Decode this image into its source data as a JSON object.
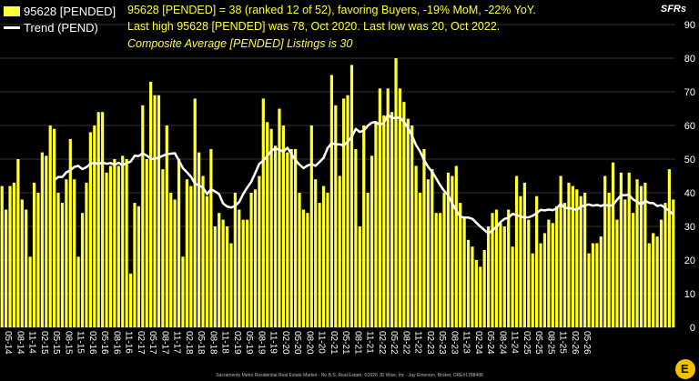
{
  "legend": {
    "bar_label": "95628 [PENDED]",
    "line_label": "Trend (PEND)"
  },
  "annotations": {
    "line1": "95628 [PENDED] = 38 (ranked 12 of 52), favoring Buyers, -19% MoM, -22% YoY.",
    "line2": "Last high 95628 [PENDED] was 78, Oct 2020. Last low was 20, Oct 2022.",
    "line3": "Composite Average [PENDED] Listings is 30"
  },
  "unit_label": "SFRs",
  "footer": "Sacramento Metro Residential Real Estate Market - No B.S. Real Estate, ©2026 JD Wise, Inc - Jay Emerson, Broker, DRE#1788488",
  "colors": {
    "bar": "#ffff33",
    "trend": "#ffffff",
    "background": "#000000",
    "grid": "#333333"
  },
  "chart_data": {
    "type": "bar",
    "ylim": [
      0,
      90
    ],
    "y_ticks": [
      0,
      10,
      20,
      30,
      40,
      50,
      60,
      70,
      80,
      90
    ],
    "x_tick_labels": [
      "05-14",
      "08-14",
      "11-14",
      "02-15",
      "05-15",
      "08-15",
      "11-15",
      "02-16",
      "05-16",
      "08-16",
      "11-16",
      "02-17",
      "05-17",
      "08-17",
      "11-17",
      "02-18",
      "05-18",
      "08-18",
      "11-18",
      "02-19",
      "05-19",
      "08-19",
      "11-19",
      "02-20",
      "05-20",
      "08-20",
      "11-20",
      "02-21",
      "05-21",
      "08-21",
      "11-21",
      "02-22",
      "05-22",
      "08-22",
      "11-22",
      "02-23",
      "05-23",
      "08-23",
      "11-23",
      "02-24",
      "05-24",
      "08-24",
      "11-24",
      "02-25",
      "05-25",
      "08-25",
      "11-25",
      "02-26",
      "05-26"
    ],
    "series": [
      {
        "name": "95628 [PENDED]",
        "type": "bar",
        "values": [
          42,
          35,
          42,
          43,
          50,
          38,
          35,
          21,
          43,
          40,
          52,
          51,
          60,
          59,
          40,
          37,
          44,
          56,
          44,
          21,
          34,
          43,
          58,
          60,
          64,
          64,
          46,
          48,
          50,
          48,
          51,
          50,
          16,
          37,
          36,
          66,
          50,
          73,
          69,
          69,
          47,
          60,
          40,
          38,
          50,
          21,
          44,
          42,
          68,
          52,
          45,
          39,
          53,
          30,
          34,
          32,
          30,
          25,
          40,
          35,
          32,
          32,
          40,
          41,
          45,
          68,
          61,
          59,
          54,
          65,
          60,
          52,
          53,
          53,
          40,
          35,
          34,
          60,
          44,
          37,
          42,
          40,
          75,
          66,
          45,
          68,
          69,
          78,
          53,
          30,
          60,
          40,
          51,
          61,
          71,
          63,
          71,
          64,
          80,
          71,
          67,
          62,
          60,
          48,
          40,
          53,
          44,
          47,
          34,
          34,
          40,
          46,
          45,
          48,
          37,
          33,
          26,
          24,
          20,
          18,
          23,
          30,
          34,
          35,
          31,
          30,
          35,
          24,
          45,
          39,
          43,
          32,
          22,
          39,
          25,
          28,
          32,
          31,
          36,
          45,
          37,
          43,
          42,
          41,
          39,
          40,
          22,
          25,
          25,
          27,
          45,
          40,
          49,
          32,
          46,
          38,
          46,
          34,
          44,
          42,
          43,
          25,
          28,
          27,
          32,
          37,
          47,
          38
        ]
      },
      {
        "name": "Trend (PEND)",
        "type": "line",
        "values": [
          null,
          null,
          null,
          null,
          null,
          null,
          null,
          null,
          null,
          null,
          null,
          null,
          null,
          null,
          null,
          null,
          null,
          null,
          null,
          null,
          null,
          null,
          null,
          null,
          null,
          null,
          null,
          null,
          null,
          null,
          null,
          null,
          null,
          null,
          null,
          null,
          null,
          null,
          null,
          null,
          null,
          null,
          null,
          null,
          null,
          null,
          null,
          null,
          null,
          null,
          null,
          null,
          null,
          null,
          null,
          null,
          null,
          null,
          null,
          null,
          null,
          null,
          null,
          null,
          null,
          null,
          null,
          null,
          null,
          null,
          null,
          null,
          null,
          null,
          null,
          null,
          null,
          null,
          null,
          null,
          null,
          null,
          null,
          null,
          null,
          null,
          null,
          null,
          null,
          null,
          null,
          null,
          null,
          null,
          null,
          null,
          null,
          null,
          null,
          null,
          null,
          null,
          null,
          null,
          null,
          null,
          null,
          null,
          null,
          null,
          null,
          null,
          null,
          null,
          null,
          null,
          null,
          null,
          null,
          null,
          null,
          null,
          null,
          null,
          null,
          null,
          null,
          null,
          null,
          null,
          null,
          null,
          null,
          null,
          null,
          null,
          null,
          null,
          null,
          null,
          null,
          null,
          null,
          null,
          null,
          null,
          null,
          null,
          null,
          null,
          null,
          null,
          null,
          null,
          null,
          null,
          null,
          null,
          null,
          null,
          null,
          null,
          null,
          null,
          null,
          null,
          null,
          null
        ]
      }
    ]
  }
}
